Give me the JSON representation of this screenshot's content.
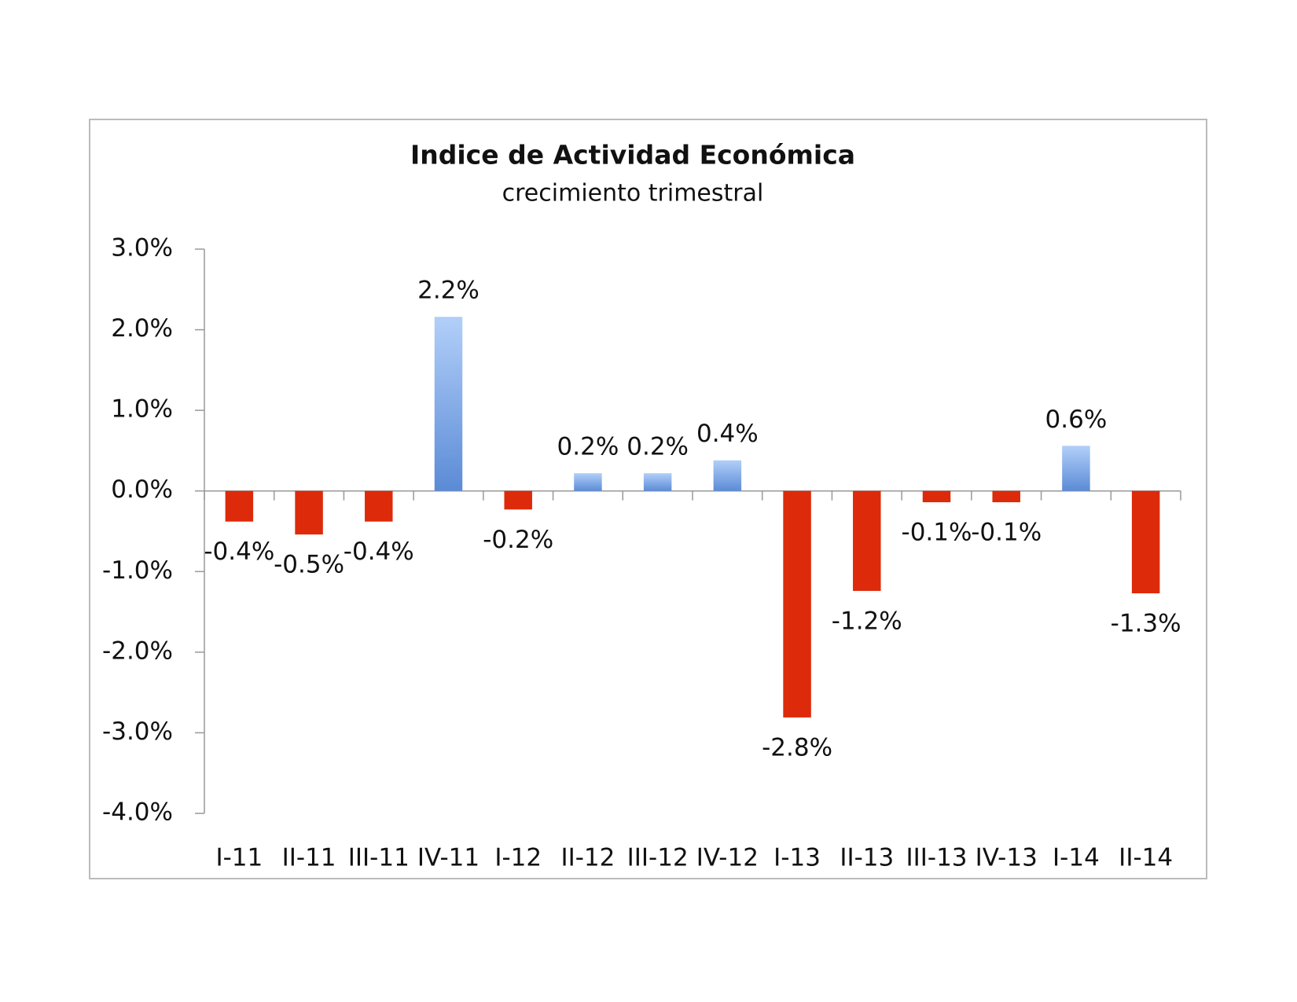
{
  "chart_data": {
    "type": "bar",
    "title": "Indice de Actividad Económica",
    "subtitle": "crecimiento trimestral",
    "categories": [
      "I-11",
      "II-11",
      "III-11",
      "IV-11",
      "I-12",
      "II-12",
      "III-12",
      "IV-12",
      "I-13",
      "II-13",
      "III-13",
      "IV-13",
      "I-14",
      "II-14"
    ],
    "values": [
      -0.38,
      -0.54,
      -0.38,
      2.16,
      -0.23,
      0.22,
      0.22,
      0.38,
      -2.81,
      -1.24,
      -0.14,
      -0.14,
      0.56,
      -1.27
    ],
    "value_labels": [
      "-0.4%",
      "-0.5%",
      "-0.4%",
      "2.2%",
      "-0.2%",
      "0.2%",
      "0.2%",
      "0.4%",
      "-2.8%",
      "-1.2%",
      "-0.1%",
      "-0.1%",
      "0.6%",
      "-1.3%"
    ],
    "colors": {
      "positive": [
        "#5b8bd6",
        "#b2cff9"
      ],
      "negative": "#dd2a0a"
    },
    "ylim": [
      -4,
      3
    ],
    "yticks": [
      {
        "value": -4,
        "label": "-4.0%"
      },
      {
        "value": -3,
        "label": "-3.0%"
      },
      {
        "value": -2,
        "label": "-2.0%"
      },
      {
        "value": -1,
        "label": "-1.0%"
      },
      {
        "value": 0,
        "label": "0.0%"
      },
      {
        "value": 1,
        "label": "1.0%"
      },
      {
        "value": 2,
        "label": "2.0%"
      },
      {
        "value": 3,
        "label": "3.0%"
      }
    ],
    "grid": false
  }
}
